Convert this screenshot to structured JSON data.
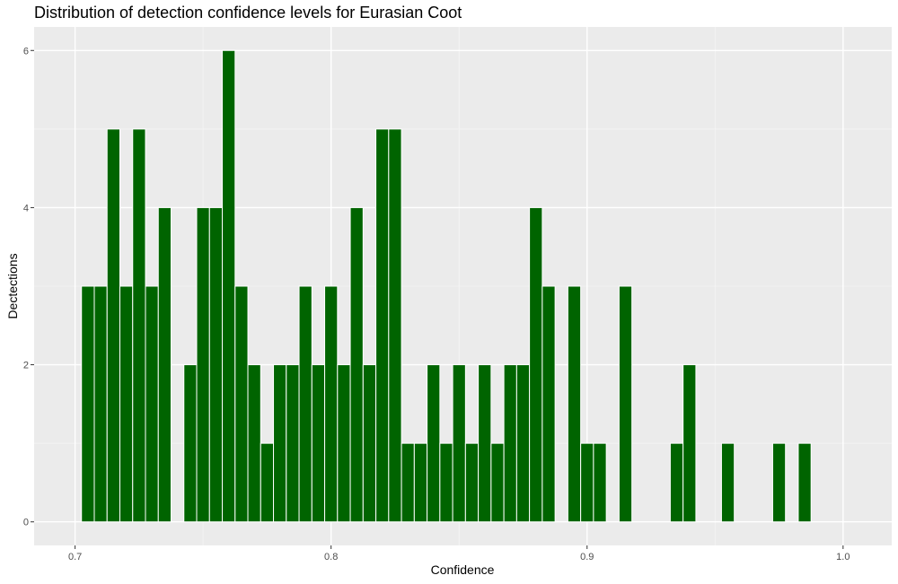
{
  "chart_data": {
    "type": "bar",
    "title": "Distribution of detection confidence levels for Eurasian Coot",
    "xlabel": "Confidence",
    "ylabel": "Dectections",
    "xlim": [
      0.684,
      1.019
    ],
    "ylim": [
      -0.3,
      6.3
    ],
    "bin_width": 0.005,
    "x_ticks": [
      0.7,
      0.8,
      0.9,
      1.0
    ],
    "x_tick_labels": [
      "0.7",
      "0.8",
      "0.9",
      "1.0"
    ],
    "y_ticks": [
      0,
      2,
      4,
      6
    ],
    "y_tick_labels": [
      "0",
      "2",
      "4",
      "6"
    ],
    "grid": true,
    "bar_color": "#006400",
    "bar_edge_color": "#ffffff",
    "panel_color": "#ebebeb",
    "bins": [
      {
        "x": 0.705,
        "count": 3
      },
      {
        "x": 0.71,
        "count": 3
      },
      {
        "x": 0.715,
        "count": 5
      },
      {
        "x": 0.72,
        "count": 3
      },
      {
        "x": 0.725,
        "count": 5
      },
      {
        "x": 0.73,
        "count": 3
      },
      {
        "x": 0.735,
        "count": 4
      },
      {
        "x": 0.74,
        "count": 0
      },
      {
        "x": 0.745,
        "count": 2
      },
      {
        "x": 0.75,
        "count": 4
      },
      {
        "x": 0.755,
        "count": 4
      },
      {
        "x": 0.76,
        "count": 6
      },
      {
        "x": 0.765,
        "count": 3
      },
      {
        "x": 0.77,
        "count": 2
      },
      {
        "x": 0.775,
        "count": 1
      },
      {
        "x": 0.78,
        "count": 2
      },
      {
        "x": 0.785,
        "count": 2
      },
      {
        "x": 0.79,
        "count": 3
      },
      {
        "x": 0.795,
        "count": 2
      },
      {
        "x": 0.8,
        "count": 3
      },
      {
        "x": 0.805,
        "count": 2
      },
      {
        "x": 0.81,
        "count": 4
      },
      {
        "x": 0.815,
        "count": 2
      },
      {
        "x": 0.82,
        "count": 5
      },
      {
        "x": 0.825,
        "count": 5
      },
      {
        "x": 0.83,
        "count": 1
      },
      {
        "x": 0.835,
        "count": 1
      },
      {
        "x": 0.84,
        "count": 2
      },
      {
        "x": 0.845,
        "count": 1
      },
      {
        "x": 0.85,
        "count": 2
      },
      {
        "x": 0.855,
        "count": 1
      },
      {
        "x": 0.86,
        "count": 2
      },
      {
        "x": 0.865,
        "count": 1
      },
      {
        "x": 0.87,
        "count": 2
      },
      {
        "x": 0.875,
        "count": 2
      },
      {
        "x": 0.88,
        "count": 4
      },
      {
        "x": 0.885,
        "count": 3
      },
      {
        "x": 0.89,
        "count": 0
      },
      {
        "x": 0.895,
        "count": 3
      },
      {
        "x": 0.9,
        "count": 1
      },
      {
        "x": 0.905,
        "count": 1
      },
      {
        "x": 0.91,
        "count": 0
      },
      {
        "x": 0.915,
        "count": 3
      },
      {
        "x": 0.92,
        "count": 0
      },
      {
        "x": 0.925,
        "count": 0
      },
      {
        "x": 0.93,
        "count": 0
      },
      {
        "x": 0.935,
        "count": 1
      },
      {
        "x": 0.94,
        "count": 2
      },
      {
        "x": 0.945,
        "count": 0
      },
      {
        "x": 0.95,
        "count": 0
      },
      {
        "x": 0.955,
        "count": 1
      },
      {
        "x": 0.96,
        "count": 0
      },
      {
        "x": 0.965,
        "count": 0
      },
      {
        "x": 0.97,
        "count": 0
      },
      {
        "x": 0.975,
        "count": 1
      },
      {
        "x": 0.98,
        "count": 0
      },
      {
        "x": 0.985,
        "count": 1
      }
    ]
  }
}
